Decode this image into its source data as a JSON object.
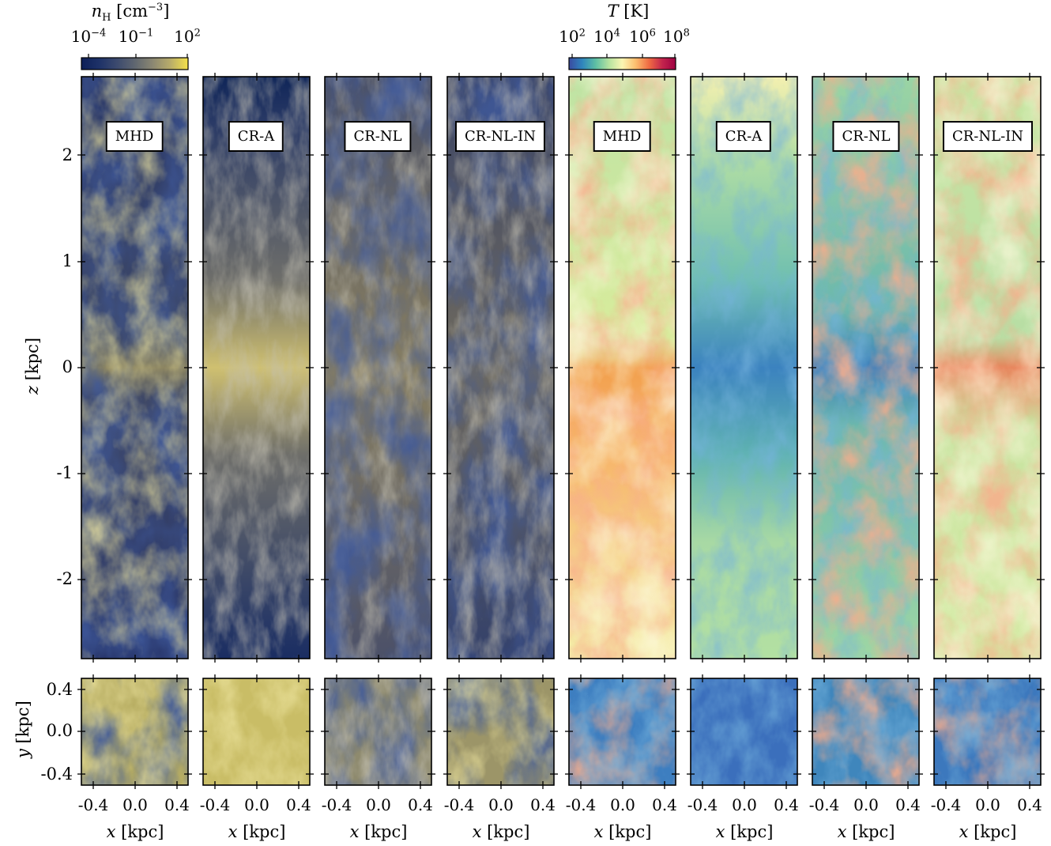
{
  "colorbars": {
    "density": {
      "title_sym": "n",
      "title_sub": "H",
      "title_unit": " [cm",
      "title_exp": "−3",
      "title_end": "]",
      "ticks": [
        {
          "base": "10",
          "exp": "−4"
        },
        {
          "base": "10",
          "exp": "−1"
        },
        {
          "base": "10",
          "exp": "2"
        }
      ],
      "colors": [
        "#0d1f58",
        "#1e3268",
        "#3c4a6e",
        "#5f6670",
        "#8b8772",
        "#b8ac6a",
        "#f5e24a"
      ]
    },
    "temperature": {
      "title_sym": "T",
      "title_unit": " [K]",
      "ticks": [
        {
          "base": "10",
          "exp": "2"
        },
        {
          "base": "10",
          "exp": "4"
        },
        {
          "base": "10",
          "exp": "6"
        },
        {
          "base": "10",
          "exp": "8"
        }
      ],
      "colors": [
        "#3a4aa0",
        "#2f86bd",
        "#5dbfa4",
        "#b6e3a0",
        "#fbf6b3",
        "#fdbe6f",
        "#f06b43",
        "#c3244d",
        "#9e0142"
      ]
    }
  },
  "panels": [
    {
      "label": "MHD",
      "field": "density"
    },
    {
      "label": "CR-A",
      "field": "density"
    },
    {
      "label": "CR-NL",
      "field": "density"
    },
    {
      "label": "CR-NL-IN",
      "field": "density"
    },
    {
      "label": "MHD",
      "field": "temperature"
    },
    {
      "label": "CR-A",
      "field": "temperature"
    },
    {
      "label": "CR-NL",
      "field": "temperature"
    },
    {
      "label": "CR-NL-IN",
      "field": "temperature"
    }
  ],
  "axes": {
    "z_label_sym": "z",
    "z_label_unit": " [kpc]",
    "z_ticks": [
      "2",
      "1",
      "0",
      "-1",
      "-2"
    ],
    "y_label_sym": "y",
    "y_label_unit": " [kpc]",
    "y_ticks": [
      "0.4",
      "0.0",
      "-0.4"
    ],
    "x_label_sym": "x",
    "x_label_unit": " [kpc]",
    "x_ticks": [
      "-0.4",
      "0.0",
      "0.4"
    ]
  }
}
